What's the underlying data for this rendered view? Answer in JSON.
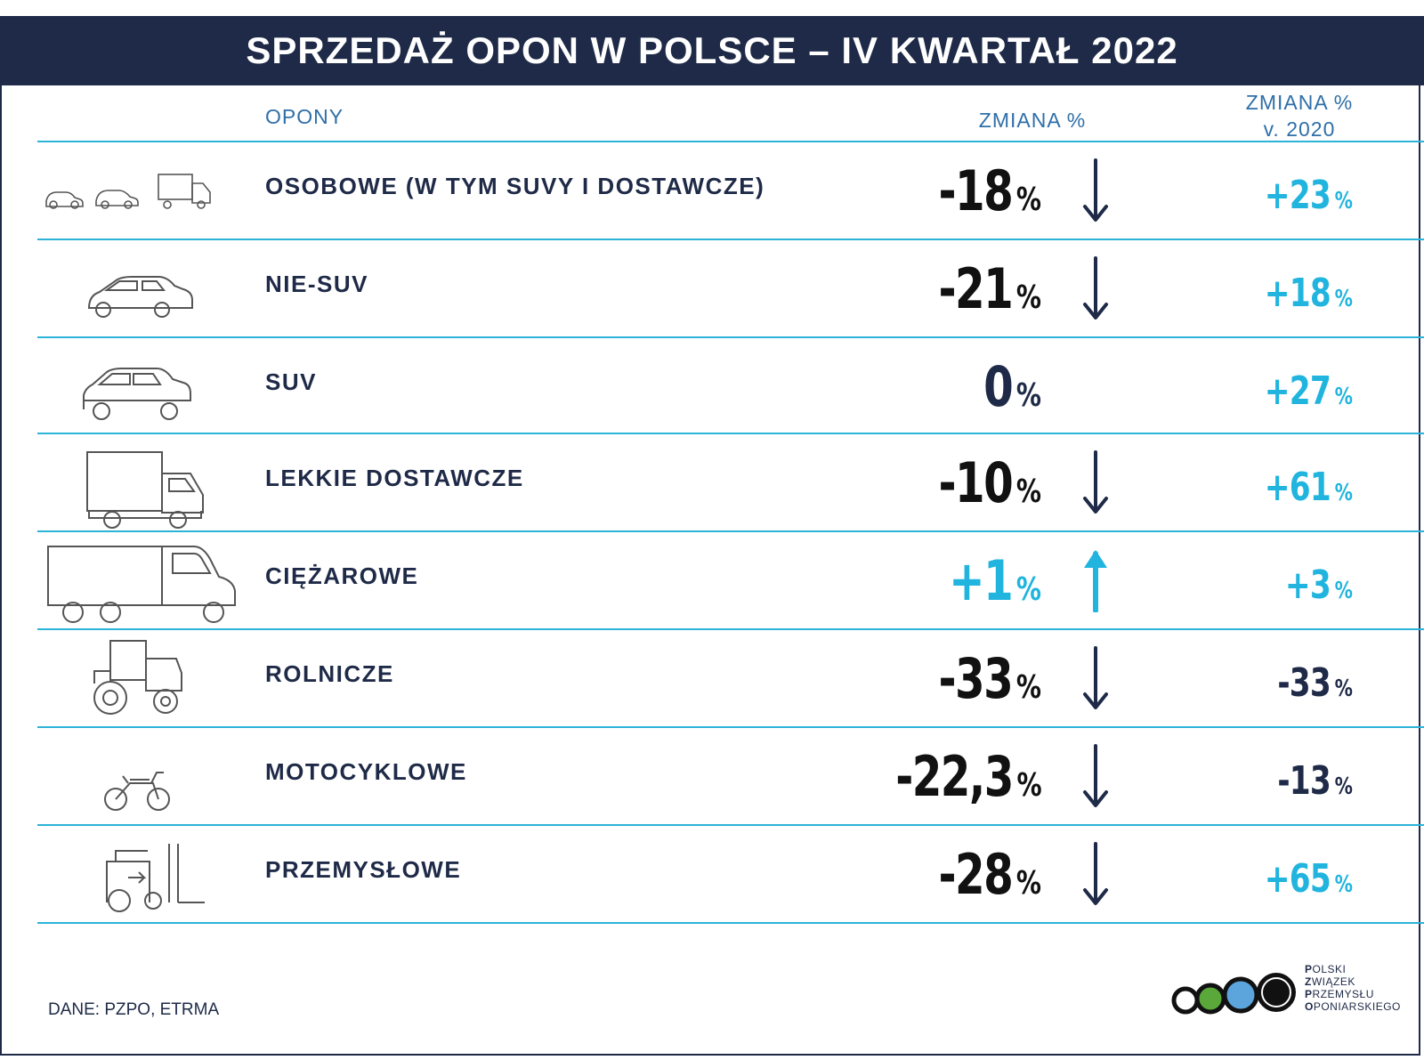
{
  "title": "SPRZEDAŻ OPON W POLSCE – IV KWARTAŁ 2022",
  "headers": {
    "opony": "OPONY",
    "zmiana": "ZMIANA %",
    "zmiana_v2020_line1": "ZMIANA %",
    "zmiana_v2020_line2": "v. 2020"
  },
  "colors": {
    "navy": "#1e2a47",
    "black": "#111111",
    "cyan": "#20b4de",
    "header_blue": "#2f6fa8",
    "divider": "#2bb3d8"
  },
  "chart_data": {
    "type": "table",
    "title": "SPRZEDAŻ OPON W POLSCE – IV KWARTAŁ 2022",
    "columns": [
      "OPONY",
      "ZMIANA %",
      "ZMIANA % v. 2020"
    ],
    "rows": [
      {
        "category": "OSOBOWE (W TYM SUVY I DOSTAWCZE)",
        "icon": "passenger-vehicles-icon",
        "change": "-18",
        "change_value": -18,
        "change_color": "#111111",
        "arrow": "down",
        "change_v2020": "+23",
        "change_v2020_value": 23,
        "v2020_color": "#20b4de"
      },
      {
        "category": "NIE-SUV",
        "icon": "car-icon",
        "change": "-21",
        "change_value": -21,
        "change_color": "#111111",
        "arrow": "down",
        "change_v2020": "+18",
        "change_v2020_value": 18,
        "v2020_color": "#20b4de"
      },
      {
        "category": "SUV",
        "icon": "suv-icon",
        "change": "0",
        "change_value": 0,
        "change_color": "#1e2a47",
        "arrow": "none",
        "change_v2020": "+27",
        "change_v2020_value": 27,
        "v2020_color": "#20b4de"
      },
      {
        "category": "LEKKIE DOSTAWCZE",
        "icon": "delivery-van-icon",
        "change": "-10",
        "change_value": -10,
        "change_color": "#111111",
        "arrow": "down",
        "change_v2020": "+61",
        "change_v2020_value": 61,
        "v2020_color": "#20b4de"
      },
      {
        "category": "CIĘŻAROWE",
        "icon": "truck-icon",
        "change": "+1",
        "change_value": 1,
        "change_color": "#20b4de",
        "arrow": "up",
        "change_v2020": "+3",
        "change_v2020_value": 3,
        "v2020_color": "#20b4de"
      },
      {
        "category": "ROLNICZE",
        "icon": "tractor-icon",
        "change": "-33",
        "change_value": -33,
        "change_color": "#111111",
        "arrow": "down",
        "change_v2020": "-33",
        "change_v2020_value": -33,
        "v2020_color": "#1e2a47"
      },
      {
        "category": "MOTOCYKLOWE",
        "icon": "motorcycle-icon",
        "change": "-22,3",
        "change_value": -22.3,
        "change_color": "#111111",
        "arrow": "down",
        "change_v2020": "-13",
        "change_v2020_value": -13,
        "v2020_color": "#1e2a47"
      },
      {
        "category": "PRZEMYSŁOWE",
        "icon": "forklift-icon",
        "change": "-28",
        "change_value": -28,
        "change_color": "#111111",
        "arrow": "down",
        "change_v2020": "+65",
        "change_v2020_value": 65,
        "v2020_color": "#20b4de"
      }
    ],
    "unit": "%"
  },
  "footer": {
    "source": "DANE: PZPO, ETRMA",
    "logo_lines": [
      "Polski",
      "Związek",
      "Przemysłu",
      "Oponiarskiego"
    ],
    "logo_initials": [
      "P",
      "Z",
      "P",
      "O"
    ],
    "logo_rests": [
      "OLSKI",
      "WIĄZEK",
      "RZEMYSŁU",
      "PONIARSKIEGO"
    ],
    "logo_circle_colors": [
      "#ffffff",
      "#5aa83a",
      "#5ba4dc",
      "#111111"
    ]
  }
}
